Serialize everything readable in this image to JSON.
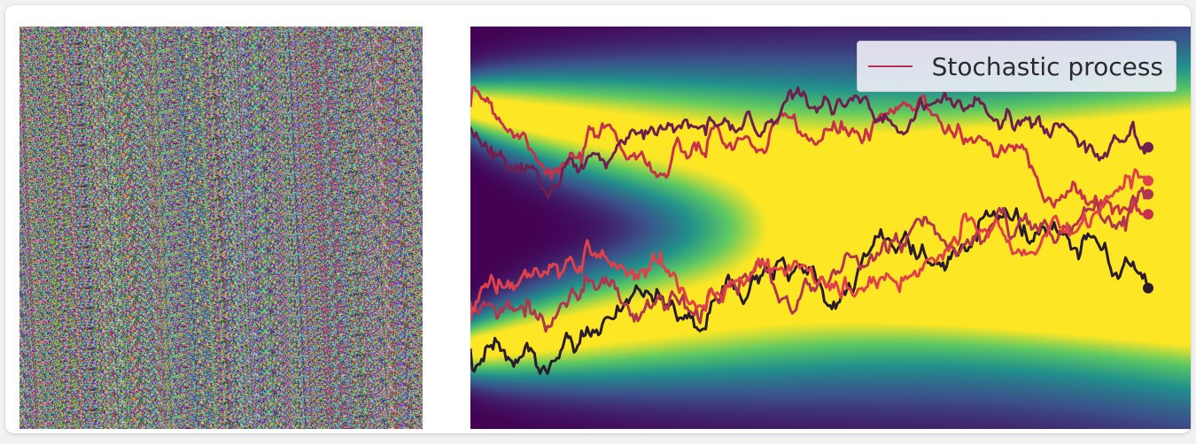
{
  "panels": {
    "left": {
      "content": "random RGB pixel noise"
    },
    "right": {
      "background": "viridis density band"
    }
  },
  "colors": {
    "paths": [
      "#c9304a",
      "#2a1b2e",
      "#b0354f",
      "#6e1f4f",
      "#e0404a"
    ],
    "legend_line": "#b5304e",
    "colormap": "viridis"
  },
  "legend": {
    "label": "Stochastic process",
    "position": "top-right"
  },
  "chart_data": {
    "type": "line",
    "x_range": [
      0,
      1
    ],
    "y_range": [
      -3,
      3
    ],
    "grid": false,
    "legend": "top-right",
    "background": {
      "type": "heatmap",
      "colormap": "viridis",
      "start_modes": [
        -1.8,
        1.8
      ],
      "end_modes": [
        0
      ],
      "end_spread": 1.4
    },
    "series": [
      {
        "name": "Stochastic process",
        "start": 1.8,
        "end": 0.2,
        "color": "#c9304a",
        "seed": 7
      },
      {
        "start": -1.8,
        "end": -0.9,
        "color": "#2a1b2e",
        "seed": 19
      },
      {
        "start": -1.1,
        "end": 0.5,
        "color": "#b0354f",
        "seed": 33
      },
      {
        "start": 1.5,
        "end": 1.2,
        "color": "#6e1f4f",
        "seed": 51
      },
      {
        "start": -1.4,
        "end": 0.7,
        "color": "#e0404a",
        "seed": 77
      }
    ]
  }
}
